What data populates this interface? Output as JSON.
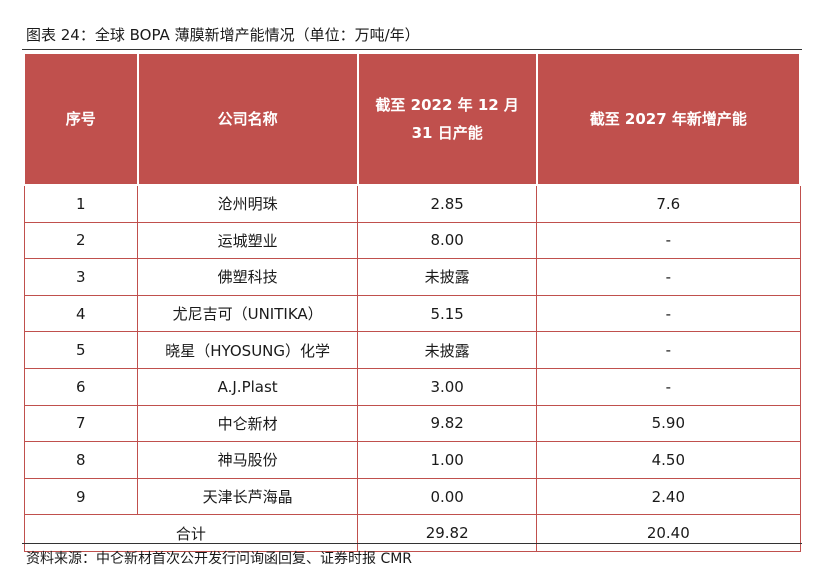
{
  "caption": "图表 24：全球 BOPA 薄膜新增产能情况（单位：万吨/年）",
  "table": {
    "headers": [
      "序号",
      "公司名称",
      "截至 2022 年 12 月 31 日产能",
      "截至 2027 年新增产能"
    ],
    "rows": [
      [
        "1",
        "沧州明珠",
        "2.85",
        "7.6"
      ],
      [
        "2",
        "运城塑业",
        "8.00",
        "-"
      ],
      [
        "3",
        "佛塑科技",
        "未披露",
        "-"
      ],
      [
        "4",
        "尤尼吉可（UNITIKA）",
        "5.15",
        "-"
      ],
      [
        "5",
        "晓星（HYOSUNG）化学",
        "未披露",
        "-"
      ],
      [
        "6",
        "A.J.Plast",
        "3.00",
        "-"
      ],
      [
        "7",
        "中仑新材",
        "9.82",
        "5.90"
      ],
      [
        "8",
        "神马股份",
        "1.00",
        "4.50"
      ],
      [
        "9",
        "天津长芦海晶",
        "0.00",
        "2.40"
      ]
    ],
    "total": {
      "label": "合计",
      "capacity_2022": "29.82",
      "new_2027": "20.40"
    }
  },
  "source": "资料来源：中仑新材首次公开发行问询函回复、证券时报 CMR"
}
